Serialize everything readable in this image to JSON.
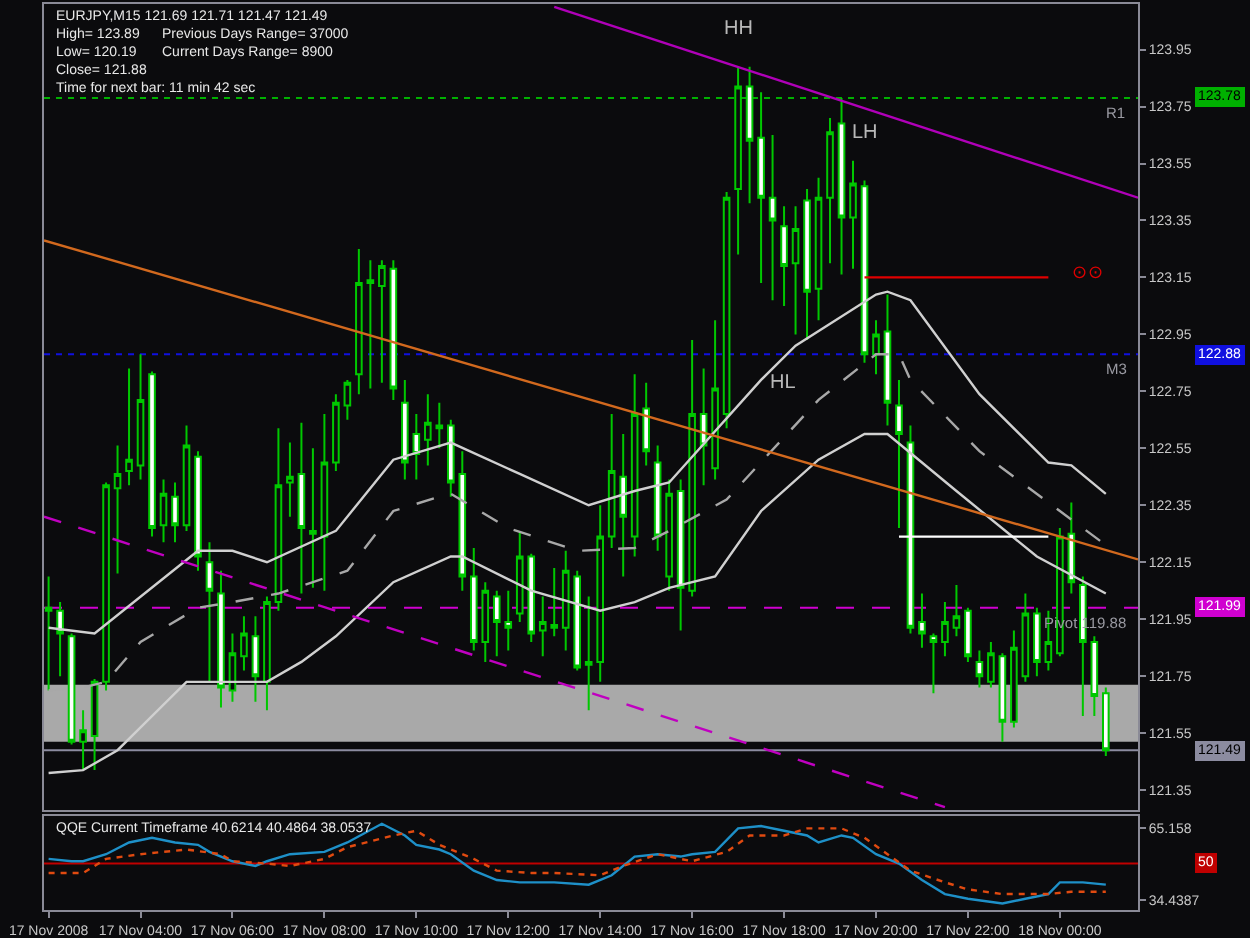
{
  "chart_data": [
    {
      "type": "candlestick",
      "title": "EURJPY,M15 121.69 121.71 121.47 121.49",
      "annotations": [
        "High= 123.89",
        "Previous Days Range= 37000",
        "Low= 120.19",
        "Current Days Range= 8900",
        "Close= 121.88",
        "Time for next bar: 11 min 42 sec",
        "HH",
        "LH",
        "HL",
        "123.78",
        "122.88",
        "121.99",
        "121.49"
      ],
      "x": [
        "2008-11-17T02:00",
        "2008-11-17T02:15",
        "2008-11-17T02:30",
        "2008-11-17T02:45",
        "2008-11-17T03:00",
        "2008-11-17T03:15",
        "2008-11-17T03:30",
        "2008-11-17T03:45",
        "2008-11-17T04:00",
        "2008-11-17T04:15",
        "2008-11-17T04:30",
        "2008-11-17T04:45",
        "2008-11-17T05:00",
        "2008-11-17T05:15",
        "2008-11-17T05:30",
        "2008-11-17T05:45",
        "2008-11-17T06:00",
        "2008-11-17T06:15",
        "2008-11-17T06:30",
        "2008-11-17T06:45",
        "2008-11-17T07:00",
        "2008-11-17T07:15",
        "2008-11-17T07:30",
        "2008-11-17T07:45",
        "2008-11-17T08:00",
        "2008-11-17T08:15",
        "2008-11-17T08:30",
        "2008-11-17T08:45",
        "2008-11-17T09:00",
        "2008-11-17T09:15",
        "2008-11-17T09:30",
        "2008-11-17T09:45",
        "2008-11-17T10:00",
        "2008-11-17T10:15",
        "2008-11-17T10:30",
        "2008-11-17T10:45",
        "2008-11-17T11:00",
        "2008-11-17T11:15",
        "2008-11-17T11:30",
        "2008-11-17T11:45",
        "2008-11-17T12:00",
        "2008-11-17T12:15",
        "2008-11-17T12:30",
        "2008-11-17T12:45",
        "2008-11-17T13:00",
        "2008-11-17T13:15",
        "2008-11-17T13:30",
        "2008-11-17T13:45",
        "2008-11-17T14:00",
        "2008-11-17T14:15",
        "2008-11-17T14:30",
        "2008-11-17T14:45",
        "2008-11-17T15:00",
        "2008-11-17T15:15",
        "2008-11-17T15:30",
        "2008-11-17T15:45",
        "2008-11-17T16:00",
        "2008-11-17T16:15",
        "2008-11-17T16:30",
        "2008-11-17T16:45",
        "2008-11-17T17:00",
        "2008-11-17T17:15",
        "2008-11-17T17:30",
        "2008-11-17T17:45",
        "2008-11-17T18:00",
        "2008-11-17T18:15",
        "2008-11-17T18:30",
        "2008-11-17T18:45",
        "2008-11-17T19:00",
        "2008-11-17T19:15",
        "2008-11-17T19:30",
        "2008-11-17T19:45",
        "2008-11-17T20:00",
        "2008-11-17T20:15",
        "2008-11-17T20:30",
        "2008-11-17T20:45",
        "2008-11-17T21:00",
        "2008-11-17T21:15",
        "2008-11-17T21:30",
        "2008-11-17T21:45",
        "2008-11-17T22:00",
        "2008-11-17T22:15",
        "2008-11-17T22:30",
        "2008-11-17T22:45",
        "2008-11-17T23:00",
        "2008-11-17T23:15",
        "2008-11-17T23:30",
        "2008-11-17T23:45",
        "2008-11-18T00:00",
        "2008-11-18T00:15",
        "2008-11-18T00:30",
        "2008-11-18T00:45",
        "2008-11-18T01:00"
      ],
      "ohlc": [
        [
          121.98,
          122.1,
          121.7,
          121.99
        ],
        [
          121.98,
          122.01,
          121.75,
          121.9
        ],
        [
          121.89,
          121.9,
          121.51,
          121.52
        ],
        [
          121.52,
          121.63,
          121.42,
          121.56
        ],
        [
          121.54,
          121.74,
          121.42,
          121.73
        ],
        [
          121.73,
          122.43,
          121.7,
          122.42
        ],
        [
          122.41,
          122.56,
          122.11,
          122.46
        ],
        [
          122.47,
          122.83,
          122.42,
          122.51
        ],
        [
          122.49,
          122.88,
          122.44,
          122.72
        ],
        [
          122.81,
          122.82,
          122.24,
          122.27
        ],
        [
          122.28,
          122.44,
          122.22,
          122.39
        ],
        [
          122.38,
          122.43,
          122.22,
          122.28
        ],
        [
          122.28,
          122.63,
          122.26,
          122.56
        ],
        [
          122.52,
          122.54,
          122.12,
          122.17
        ],
        [
          122.15,
          122.22,
          121.73,
          122.05
        ],
        [
          122.04,
          122.12,
          121.64,
          121.71
        ],
        [
          121.7,
          121.9,
          121.66,
          121.83
        ],
        [
          121.82,
          121.96,
          121.77,
          121.9
        ],
        [
          121.89,
          121.96,
          121.66,
          121.75
        ],
        [
          121.73,
          122.03,
          121.63,
          122.01
        ],
        [
          122.01,
          122.62,
          121.98,
          122.42
        ],
        [
          122.43,
          122.57,
          122.31,
          122.45
        ],
        [
          122.46,
          122.64,
          122.04,
          122.27
        ],
        [
          122.26,
          122.55,
          122.06,
          122.25
        ],
        [
          122.24,
          122.67,
          122.05,
          122.5
        ],
        [
          122.5,
          122.74,
          122.47,
          122.71
        ],
        [
          122.7,
          122.79,
          122.65,
          122.78
        ],
        [
          122.81,
          123.25,
          122.74,
          123.13
        ],
        [
          123.13,
          123.21,
          122.76,
          123.14
        ],
        [
          123.12,
          123.21,
          122.78,
          123.19
        ],
        [
          123.18,
          123.21,
          122.72,
          122.76
        ],
        [
          122.71,
          122.79,
          122.44,
          122.5
        ],
        [
          122.6,
          122.67,
          122.44,
          122.53
        ],
        [
          122.58,
          122.74,
          122.49,
          122.64
        ],
        [
          122.62,
          122.71,
          122.55,
          122.63
        ],
        [
          122.63,
          122.65,
          122.38,
          122.43
        ],
        [
          122.46,
          122.54,
          122.05,
          122.1
        ],
        [
          122.1,
          122.2,
          121.84,
          121.87
        ],
        [
          121.87,
          122.08,
          121.8,
          122.05
        ],
        [
          122.03,
          122.05,
          121.82,
          121.94
        ],
        [
          121.94,
          122.05,
          121.84,
          121.92
        ],
        [
          121.97,
          122.26,
          121.94,
          122.17
        ],
        [
          122.17,
          122.18,
          121.87,
          121.9
        ],
        [
          121.91,
          122.03,
          121.82,
          121.94
        ],
        [
          121.93,
          122.13,
          121.89,
          121.92
        ],
        [
          121.92,
          122.19,
          121.84,
          122.12
        ],
        [
          122.1,
          122.12,
          121.77,
          121.78
        ],
        [
          121.79,
          122.03,
          121.63,
          121.8
        ],
        [
          121.8,
          122.35,
          121.73,
          122.24
        ],
        [
          122.24,
          122.67,
          122.2,
          122.47
        ],
        [
          122.45,
          122.6,
          122.1,
          122.31
        ],
        [
          122.24,
          122.81,
          122.17,
          122.67
        ],
        [
          122.69,
          122.78,
          122.49,
          122.54
        ],
        [
          122.5,
          122.56,
          122.19,
          122.24
        ],
        [
          122.1,
          122.44,
          122.05,
          122.39
        ],
        [
          122.4,
          122.44,
          121.91,
          122.06
        ],
        [
          122.05,
          122.93,
          122.03,
          122.67
        ],
        [
          122.67,
          122.83,
          122.42,
          122.56
        ],
        [
          122.48,
          123.0,
          122.44,
          122.76
        ],
        [
          122.67,
          123.45,
          122.62,
          123.43
        ],
        [
          123.46,
          123.89,
          123.23,
          123.82
        ],
        [
          123.82,
          123.89,
          123.41,
          123.63
        ],
        [
          123.64,
          123.8,
          123.13,
          123.43
        ],
        [
          123.43,
          123.65,
          123.07,
          123.35
        ],
        [
          123.33,
          123.4,
          123.05,
          123.19
        ],
        [
          123.2,
          123.4,
          122.95,
          123.32
        ],
        [
          123.42,
          123.46,
          122.93,
          123.1
        ],
        [
          123.11,
          123.5,
          123.0,
          123.43
        ],
        [
          123.43,
          123.71,
          123.2,
          123.66
        ],
        [
          123.69,
          123.78,
          123.16,
          123.36
        ],
        [
          123.36,
          123.56,
          123.18,
          123.48
        ],
        [
          123.47,
          123.49,
          122.85,
          122.88
        ],
        [
          122.88,
          123.0,
          122.81,
          122.95
        ],
        [
          122.96,
          123.09,
          122.63,
          122.71
        ],
        [
          122.7,
          122.79,
          122.27,
          122.6
        ],
        [
          122.57,
          122.63,
          121.9,
          121.92
        ],
        [
          121.94,
          122.04,
          121.85,
          121.9
        ],
        [
          121.89,
          121.9,
          121.69,
          121.87
        ],
        [
          121.87,
          122.01,
          121.82,
          121.94
        ],
        [
          121.92,
          122.07,
          121.89,
          121.96
        ],
        [
          121.98,
          121.99,
          121.8,
          121.82
        ],
        [
          121.8,
          121.84,
          121.71,
          121.75
        ],
        [
          121.73,
          121.87,
          121.71,
          121.83
        ],
        [
          121.82,
          121.83,
          121.52,
          121.59
        ],
        [
          121.59,
          121.91,
          121.57,
          121.85
        ],
        [
          121.75,
          122.04,
          121.73,
          121.97
        ],
        [
          121.97,
          121.99,
          121.75,
          121.8
        ],
        [
          121.8,
          121.98,
          121.77,
          121.87
        ],
        [
          121.83,
          122.27,
          121.82,
          122.24
        ],
        [
          122.25,
          122.36,
          122.04,
          122.08
        ],
        [
          122.07,
          122.1,
          121.61,
          121.87
        ],
        [
          121.87,
          121.89,
          121.61,
          121.68
        ],
        [
          121.69,
          121.71,
          121.47,
          121.49
        ]
      ],
      "color": "#00c800",
      "colors": [
        "#00c800",
        "#ffffff",
        "#ffffff",
        "#00c800",
        "#00c800",
        "#00c800",
        "#00c800",
        "#00c800",
        "#00c800",
        "#ffffff",
        "#00c800",
        "#ffffff",
        "#00c800",
        "#ffffff",
        "#ffffff",
        "#ffffff",
        "#00c800",
        "#00c800",
        "#ffffff",
        "#00c800",
        "#00c800",
        "#00c800",
        "#ffffff",
        "#00c800",
        "#00c800",
        "#00c800",
        "#00c800",
        "#00c800",
        "#00c800",
        "#00c800",
        "#ffffff",
        "#ffffff",
        "#ffffff",
        "#00c800",
        "#00c800",
        "#ffffff",
        "#ffffff",
        "#ffffff",
        "#00c800",
        "#ffffff",
        "#ffffff",
        "#00c800",
        "#ffffff",
        "#00c800",
        "#00c800",
        "#00c800",
        "#ffffff",
        "#00c800",
        "#00c800",
        "#00c800",
        "#ffffff",
        "#00c800",
        "#ffffff",
        "#ffffff",
        "#00c800",
        "#ffffff",
        "#00c800",
        "#ffffff",
        "#00c800",
        "#00c800",
        "#00c800",
        "#ffffff",
        "#ffffff",
        "#ffffff",
        "#ffffff",
        "#00c800",
        "#ffffff",
        "#00c800",
        "#00c800",
        "#ffffff",
        "#00c800",
        "#ffffff",
        "#00c800",
        "#ffffff",
        "#ffffff",
        "#ffffff",
        "#ffffff",
        "#ffffff",
        "#00c800",
        "#00c800",
        "#ffffff",
        "#ffffff",
        "#00c800",
        "#ffffff",
        "#00c800",
        "#00c800",
        "#ffffff",
        "#00c800",
        "#00c800",
        "#ffffff",
        "#ffffff",
        "#ffffff",
        "#ffffff"
      ],
      "series": [
        {
          "type": "line",
          "color": "#d0d0d0",
          "x": [
            "2008-11-17T02:00",
            "2008-11-17T03:00",
            "2008-11-17T05:15",
            "2008-11-17T06:00",
            "2008-11-17T06:45",
            "2008-11-17T08:15",
            "2008-11-17T09:30",
            "2008-11-17T10:45",
            "2008-11-17T12:15",
            "2008-11-17T13:45",
            "2008-11-17T14:45",
            "2008-11-17T15:30",
            "2008-11-17T17:30",
            "2008-11-17T18:15",
            "2008-11-17T20:00",
            "2008-11-17T20:15",
            "2008-11-17T20:45",
            "2008-11-17T22:15",
            "2008-11-17T23:45",
            "2008-11-18T00:15",
            "2008-11-18T01:00"
          ],
          "values": [
            121.92,
            121.9,
            122.19,
            122.19,
            122.15,
            122.26,
            122.51,
            122.57,
            122.46,
            122.35,
            122.4,
            122.43,
            122.79,
            122.91,
            123.09,
            123.1,
            123.07,
            122.74,
            122.5,
            122.49,
            122.39
          ]
        },
        {
          "type": "line",
          "color": "#a8a8a8",
          "line_style": "dashed",
          "x": [
            "2008-11-17T02:00",
            "2008-11-17T02:45",
            "2008-11-17T03:15",
            "2008-11-17T04:00",
            "2008-11-17T05:15",
            "2008-11-17T06:00",
            "2008-11-17T07:00",
            "2008-11-17T08:30",
            "2008-11-17T09:30",
            "2008-11-17T10:30",
            "2008-11-17T10:45",
            "2008-11-17T12:00",
            "2008-11-17T13:30",
            "2008-11-17T14:45",
            "2008-11-17T15:30",
            "2008-11-17T16:45",
            "2008-11-17T18:45",
            "2008-11-17T20:00",
            "2008-11-17T20:30",
            "2008-11-17T20:45",
            "2008-11-17T22:15",
            "2008-11-18T00:00",
            "2008-11-18T01:00"
          ],
          "values": [
            121.7,
            121.71,
            121.73,
            121.87,
            121.99,
            122.01,
            122.04,
            122.12,
            122.33,
            122.38,
            122.39,
            122.27,
            122.19,
            122.2,
            122.26,
            122.37,
            122.72,
            122.88,
            122.88,
            122.79,
            122.54,
            122.33,
            122.21
          ]
        },
        {
          "type": "line",
          "color": "#d0d0d0",
          "x": [
            "2008-11-17T02:00",
            "2008-11-17T02:45",
            "2008-11-17T03:30",
            "2008-11-17T05:00",
            "2008-11-17T06:00",
            "2008-11-17T06:45",
            "2008-11-17T07:30",
            "2008-11-17T08:15",
            "2008-11-17T09:30",
            "2008-11-17T10:45",
            "2008-11-17T11:00",
            "2008-11-17T12:30",
            "2008-11-17T14:00",
            "2008-11-17T14:45",
            "2008-11-17T15:30",
            "2008-11-17T16:30",
            "2008-11-17T17:30",
            "2008-11-17T18:45",
            "2008-11-17T19:45",
            "2008-11-17T20:15",
            "2008-11-17T21:45",
            "2008-11-17T23:30",
            "2008-11-18T01:00"
          ],
          "values": [
            121.41,
            121.42,
            121.49,
            121.73,
            121.73,
            121.73,
            121.8,
            121.89,
            122.08,
            122.17,
            122.17,
            122.05,
            121.98,
            122.01,
            122.06,
            122.1,
            122.33,
            122.51,
            122.6,
            122.6,
            122.4,
            122.17,
            122.04
          ]
        },
        {
          "type": "line",
          "color": "#b000b8",
          "x": [
            "2008-11-17T13:00",
            "2008-11-18T01:42"
          ],
          "values": [
            124.1,
            123.43
          ]
        },
        {
          "type": "line",
          "color": "#d2691e",
          "x": [
            "2008-11-17T01:54",
            "2008-11-18T01:42"
          ],
          "values": [
            123.28,
            122.16
          ]
        },
        {
          "type": "line",
          "color": "#c000c0",
          "line_style": "dashed",
          "x": [
            "2008-11-17T01:54",
            "2008-11-17T21:30"
          ],
          "values": [
            122.31,
            121.29
          ]
        },
        {
          "type": "line",
          "name": "⊙⊙",
          "color": "#e00000",
          "x": [
            "2008-11-17T19:45",
            "2008-11-17T23:45"
          ],
          "values": [
            123.15,
            123.15
          ]
        },
        {
          "type": "line",
          "color": "#ffffff",
          "x": [
            "2008-11-17T20:30",
            "2008-11-17T23:45"
          ],
          "values": [
            122.24,
            122.24
          ]
        }
      ],
      "ref_lines": [
        {
          "axis": "y",
          "value": 123.78,
          "label": "R1",
          "color": "#00b000",
          "line_style": "dotted"
        },
        {
          "axis": "y",
          "value": 122.88,
          "label": "M3",
          "color": "#1010e0",
          "line_style": "dotted"
        },
        {
          "axis": "y",
          "value": 121.99,
          "label": "Pivot 119.88",
          "color": "#d000d0",
          "line_style": "dashed"
        },
        {
          "axis": "y",
          "value": 121.49,
          "color": "#8c8ca0",
          "line_style": "solid"
        }
      ],
      "bands": [
        {
          "axis": "y",
          "from": 121.52,
          "to": 121.72,
          "color": "#a9a9a9"
        }
      ],
      "xlim": [
        "2008-11-17T01:54",
        "2008-11-18T01:42"
      ],
      "ylim": [
        121.28,
        124.11
      ],
      "yticks": [
        123.95,
        123.75,
        123.55,
        123.35,
        123.15,
        122.95,
        122.75,
        122.55,
        122.35,
        122.15,
        121.95,
        121.75,
        121.55,
        121.35
      ],
      "tick_labels": "y"
    },
    {
      "type": "line",
      "title": "QQE Current Timeframe 40.6214 40.4864 38.0537",
      "annotations": [
        "50"
      ],
      "series": [
        {
          "color": "#1e90c8",
          "x": [
            "2008-11-17T02:00",
            "2008-11-17T02:30",
            "2008-11-17T02:45",
            "2008-11-17T03:15",
            "2008-11-17T03:45",
            "2008-11-17T04:15",
            "2008-11-17T04:45",
            "2008-11-17T05:15",
            "2008-11-17T05:30",
            "2008-11-17T06:00",
            "2008-11-17T06:30",
            "2008-11-17T06:45",
            "2008-11-17T07:15",
            "2008-11-17T08:00",
            "2008-11-17T08:30",
            "2008-11-17T09:15",
            "2008-11-17T09:45",
            "2008-11-17T10:00",
            "2008-11-17T10:30",
            "2008-11-17T10:45",
            "2008-11-17T11:15",
            "2008-11-17T11:45",
            "2008-11-17T12:15",
            "2008-11-17T13:00",
            "2008-11-17T13:45",
            "2008-11-17T14:15",
            "2008-11-17T14:45",
            "2008-11-17T15:15",
            "2008-11-17T15:45",
            "2008-11-17T16:00",
            "2008-11-17T16:30",
            "2008-11-17T17:00",
            "2008-11-17T17:30",
            "2008-11-17T18:00",
            "2008-11-17T18:30",
            "2008-11-17T18:45",
            "2008-11-17T19:15",
            "2008-11-17T19:30",
            "2008-11-17T20:00",
            "2008-11-17T20:30",
            "2008-11-17T21:00",
            "2008-11-17T21:30",
            "2008-11-17T22:00",
            "2008-11-17T22:45",
            "2008-11-17T23:15",
            "2008-11-17T23:45",
            "2008-11-18T00:00",
            "2008-11-18T00:30",
            "2008-11-18T01:00"
          ],
          "values": [
            52,
            51,
            51,
            54,
            59,
            61,
            59,
            58,
            55,
            51,
            49,
            51,
            54,
            55,
            59,
            67,
            62,
            58,
            56,
            54,
            47,
            43,
            42,
            42,
            41,
            45,
            53,
            54,
            53,
            54,
            55,
            65,
            66,
            64,
            62,
            59,
            62,
            61,
            54,
            50,
            43,
            37,
            35,
            33,
            35,
            37,
            42,
            42,
            41
          ]
        },
        {
          "color": "#e04a10",
          "line_style": "dotted",
          "x": [
            "2008-11-17T02:00",
            "2008-11-17T02:45",
            "2008-11-17T03:15",
            "2008-11-17T04:00",
            "2008-11-17T05:00",
            "2008-11-17T05:45",
            "2008-11-17T06:00",
            "2008-11-17T06:45",
            "2008-11-17T07:15",
            "2008-11-17T08:00",
            "2008-11-17T08:30",
            "2008-11-17T09:30",
            "2008-11-17T10:00",
            "2008-11-17T10:30",
            "2008-11-17T11:15",
            "2008-11-17T11:45",
            "2008-11-17T12:30",
            "2008-11-17T13:00",
            "2008-11-17T14:00",
            "2008-11-17T14:30",
            "2008-11-17T15:15",
            "2008-11-17T16:00",
            "2008-11-17T16:45",
            "2008-11-17T17:15",
            "2008-11-17T18:00",
            "2008-11-17T18:30",
            "2008-11-17T19:15",
            "2008-11-17T19:45",
            "2008-11-17T20:15",
            "2008-11-17T20:45",
            "2008-11-17T21:30",
            "2008-11-17T22:00",
            "2008-11-17T22:45",
            "2008-11-17T23:15",
            "2008-11-17T23:45",
            "2008-11-18T00:15",
            "2008-11-18T01:00"
          ],
          "values": [
            46,
            46,
            52,
            54,
            56,
            54,
            51,
            50,
            49,
            52,
            57,
            62,
            64,
            58,
            52,
            47,
            46,
            46,
            45,
            49,
            54,
            51,
            55,
            62,
            62,
            65,
            65,
            61,
            54,
            47,
            42,
            39,
            37,
            37,
            37,
            38,
            38
          ]
        }
      ],
      "ref_lines": [
        {
          "axis": "y",
          "value": 50,
          "color": "#c00000"
        }
      ],
      "xlim": [
        "2008-11-17T01:54",
        "2008-11-18T01:42"
      ],
      "xticks": [
        {
          "value": "2008-11-17T02:00",
          "label": "17 Nov 2008"
        },
        {
          "value": "2008-11-17T04:00",
          "label": "17 Nov 04:00"
        },
        {
          "value": "2008-11-17T06:00",
          "label": "17 Nov 06:00"
        },
        {
          "value": "2008-11-17T08:00",
          "label": "17 Nov 08:00"
        },
        {
          "value": "2008-11-17T10:00",
          "label": "17 Nov 10:00"
        },
        {
          "value": "2008-11-17T12:00",
          "label": "17 Nov 12:00"
        },
        {
          "value": "2008-11-17T14:00",
          "label": "17 Nov 14:00"
        },
        {
          "value": "2008-11-17T16:00",
          "label": "17 Nov 16:00"
        },
        {
          "value": "2008-11-17T18:00",
          "label": "17 Nov 18:00"
        },
        {
          "value": "2008-11-17T20:00",
          "label": "17 Nov 20:00"
        },
        {
          "value": "2008-11-17T22:00",
          "label": "17 Nov 22:00"
        },
        {
          "value": "2008-11-18T00:00",
          "label": "18 Nov 00:00"
        }
      ],
      "ylim": [
        30.2,
        70.3
      ],
      "yticks": [
        65.158,
        34.4387
      ]
    }
  ]
}
